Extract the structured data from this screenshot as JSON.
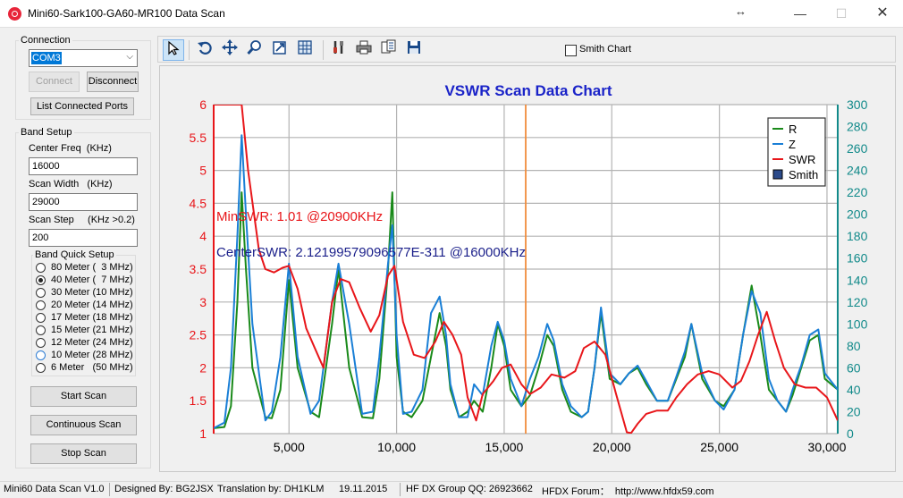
{
  "window": {
    "title": "Mini60-Sark100-GA60-MR100 Data Scan",
    "minimize": "—",
    "maximize": "☐",
    "close": "✕"
  },
  "connection": {
    "legend": "Connection",
    "port": "COM3",
    "connect_label": "Connect",
    "disconnect_label": "Disconnect",
    "list_ports_label": "List Connected Ports"
  },
  "band_setup": {
    "legend": "Band Setup",
    "center_freq_label": "Center Freq  (KHz)",
    "center_freq_value": "16000",
    "scan_width_label": "Scan Width   (KHz)",
    "scan_width_value": "29000",
    "scan_step_label": "Scan Step     (KHz >0.2)",
    "scan_step_value": "200",
    "quick_legend": "Band Quick Setup",
    "bands": [
      "80 Meter (  3 MHz)",
      "40 Meter (  7 MHz)",
      "30 Meter (10 MHz)",
      "20 Meter (14 MHz)",
      "17 Meter (18 MHz)",
      "15 Meter (21 MHz)",
      "12 Meter (24 MHz)",
      "10 Meter (28 MHz)",
      "6 Meter   (50 MHz)"
    ],
    "selected_band": 1
  },
  "actions": {
    "start_scan": "Start Scan",
    "continuous_scan": "Continuous Scan",
    "stop_scan": "Stop Scan"
  },
  "toolbar": {
    "icons": [
      "pointer-icon",
      "undo-icon",
      "move-icon",
      "zoom-icon",
      "export-icon",
      "grid-icon",
      "tools-icon",
      "print-icon",
      "copy-icon",
      "save-icon"
    ],
    "smith_chart_label": "Smith Chart",
    "smith_chart_checked": false
  },
  "chart_data": {
    "type": "line",
    "title": "VSWR Scan Data Chart",
    "xlim": [
      1500,
      30500
    ],
    "ylim": [
      1,
      6
    ],
    "y2lim": [
      0,
      300
    ],
    "x_ticks": [
      "5,000",
      "10,000",
      "15,000",
      "20,000",
      "25,000",
      "30,000"
    ],
    "x_tick_values": [
      5000,
      10000,
      15000,
      20000,
      25000,
      30000
    ],
    "y_ticks": [
      "1",
      "1.5",
      "2",
      "2.5",
      "3",
      "3.5",
      "4",
      "4.5",
      "5",
      "5.5",
      "6"
    ],
    "y2_ticks": [
      "0",
      "20",
      "40",
      "60",
      "80",
      "100",
      "120",
      "140",
      "160",
      "180",
      "200",
      "220",
      "240",
      "260",
      "280",
      "300"
    ],
    "center_marker_x": 16000,
    "annotations": [
      "MinSWR: 1.01 @20900KHz",
      "CenterSWR: 2.12199579096577E-311 @16000KHz"
    ],
    "legend": [
      "R",
      "Z",
      "SWR",
      "Smith"
    ],
    "legend_position": "top-right",
    "grid": true,
    "colors": {
      "R": "#1a8a1a",
      "Z": "#1a7fd6",
      "SWR": "#e8161a",
      "marker": "#f08c3c",
      "title": "#1a23c8",
      "right_axis": "#128a8a",
      "left_axis": "#e8161a"
    },
    "series": [
      {
        "name": "R",
        "axis": "right",
        "x": [
          1500,
          2000,
          2300,
          2600,
          2800,
          3000,
          3300,
          3900,
          4200,
          4600,
          5000,
          5400,
          6000,
          6400,
          7000,
          7300,
          7800,
          8400,
          8900,
          9200,
          9600,
          9800,
          10000,
          10300,
          10700,
          11200,
          11600,
          12000,
          12300,
          12500,
          12900,
          13300,
          13600,
          14000,
          14400,
          14700,
          15000,
          15300,
          15800,
          16200,
          16600,
          17000,
          17300,
          17700,
          18100,
          18600,
          18900,
          19200,
          19500,
          19900,
          20400,
          20800,
          21200,
          21600,
          22100,
          22600,
          23000,
          23400,
          23700,
          24200,
          24800,
          25200,
          25700,
          26100,
          26500,
          26900,
          27300,
          27700,
          28100,
          28400,
          28800,
          29200,
          29600,
          29900,
          30500
        ],
        "y": [
          5,
          6,
          25,
          120,
          220,
          150,
          60,
          15,
          14,
          40,
          140,
          60,
          20,
          15,
          100,
          150,
          60,
          15,
          14,
          50,
          150,
          220,
          70,
          20,
          15,
          30,
          70,
          110,
          80,
          40,
          15,
          20,
          30,
          20,
          60,
          100,
          80,
          40,
          25,
          35,
          60,
          90,
          80,
          40,
          20,
          15,
          20,
          60,
          110,
          50,
          45,
          55,
          60,
          45,
          30,
          30,
          50,
          70,
          100,
          50,
          30,
          25,
          40,
          90,
          135,
          90,
          40,
          30,
          20,
          35,
          60,
          85,
          90,
          50,
          40
        ]
      },
      {
        "name": "Z",
        "axis": "right",
        "x": [
          1500,
          2000,
          2300,
          2600,
          2800,
          3000,
          3300,
          3900,
          4200,
          4600,
          5000,
          5400,
          6000,
          6400,
          7000,
          7300,
          7800,
          8400,
          8900,
          9200,
          9600,
          9800,
          10000,
          10300,
          10700,
          11200,
          11600,
          12000,
          12300,
          12500,
          12900,
          13300,
          13600,
          14000,
          14400,
          14700,
          15000,
          15300,
          15800,
          16200,
          16600,
          17000,
          17300,
          17700,
          18100,
          18600,
          18900,
          19200,
          19500,
          19900,
          20400,
          20800,
          21200,
          21600,
          22100,
          22600,
          23000,
          23400,
          23700,
          24200,
          24800,
          25200,
          25700,
          26100,
          26500,
          26900,
          27300,
          27700,
          28100,
          28400,
          28800,
          29200,
          29600,
          29900,
          30500
        ],
        "y": [
          5,
          10,
          60,
          180,
          272,
          200,
          100,
          12,
          20,
          70,
          155,
          70,
          18,
          30,
          120,
          155,
          100,
          18,
          20,
          70,
          155,
          190,
          90,
          18,
          20,
          40,
          110,
          125,
          90,
          45,
          15,
          15,
          45,
          35,
          80,
          102,
          85,
          50,
          25,
          50,
          70,
          100,
          85,
          45,
          25,
          15,
          20,
          60,
          115,
          55,
          45,
          55,
          62,
          48,
          30,
          30,
          52,
          75,
          100,
          55,
          30,
          22,
          40,
          90,
          130,
          110,
          50,
          30,
          20,
          40,
          62,
          90,
          95,
          55,
          40
        ]
      },
      {
        "name": "SWR",
        "axis": "left",
        "x": [
          1500,
          2200,
          2800,
          3100,
          3600,
          3900,
          4300,
          4700,
          5000,
          5400,
          5800,
          6200,
          6600,
          7000,
          7400,
          7800,
          8300,
          8800,
          9200,
          9600,
          9900,
          10300,
          10800,
          11300,
          11800,
          12200,
          12600,
          13000,
          13300,
          13700,
          14000,
          14500,
          14900,
          15300,
          15800,
          16200,
          16700,
          17200,
          17800,
          18300,
          18700,
          19200,
          19700,
          20200,
          20700,
          20900,
          21200,
          21600,
          22100,
          22600,
          23000,
          23500,
          24000,
          24500,
          25000,
          25600,
          26000,
          26400,
          26800,
          27200,
          27600,
          28000,
          28500,
          29000,
          29500,
          30000,
          30500
        ],
        "y": [
          6,
          6,
          6,
          5.0,
          3.8,
          3.5,
          3.45,
          3.52,
          3.55,
          3.2,
          2.6,
          2.3,
          2.0,
          3.0,
          3.35,
          3.3,
          2.9,
          2.55,
          2.8,
          3.4,
          3.55,
          2.7,
          2.2,
          2.15,
          2.4,
          2.7,
          2.5,
          2.2,
          1.55,
          1.2,
          1.6,
          1.8,
          2.0,
          2.05,
          1.75,
          1.6,
          1.7,
          1.9,
          1.85,
          1.95,
          2.3,
          2.4,
          2.2,
          1.6,
          1.02,
          1.01,
          1.15,
          1.3,
          1.35,
          1.35,
          1.55,
          1.75,
          1.9,
          1.95,
          1.9,
          1.7,
          1.8,
          2.1,
          2.5,
          2.85,
          2.4,
          2.0,
          1.75,
          1.7,
          1.7,
          1.55,
          1.2
        ]
      }
    ]
  },
  "status_bar": {
    "version": "Mini60 Data Scan V1.0",
    "designer": "Designed By: BG2JSX",
    "translator": "Translation by: DH1KLM",
    "date": "19.11.2015",
    "group": "HF DX Group QQ: 26923662",
    "forum": "HFDX Forum：  http://www.hfdx59.com"
  }
}
